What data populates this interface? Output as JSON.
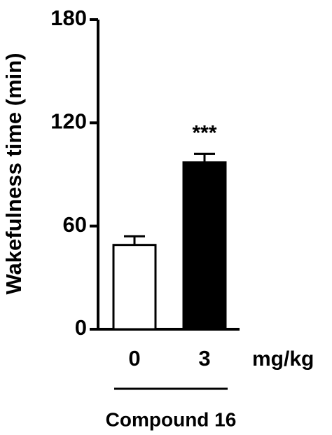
{
  "chart_data": {
    "type": "bar",
    "y_label": "Wakefulness time (min)",
    "categories": [
      "0",
      "3"
    ],
    "values": [
      49,
      97
    ],
    "errors": [
      5,
      5
    ],
    "colors": [
      "#ffffff",
      "#000000"
    ],
    "annotations": [
      "",
      "***"
    ],
    "x_unit_label": "mg/kg",
    "group_label": "Compound 16",
    "ylim": [
      0,
      180
    ],
    "yticks": [
      0,
      60,
      120,
      180
    ],
    "grid": false
  }
}
